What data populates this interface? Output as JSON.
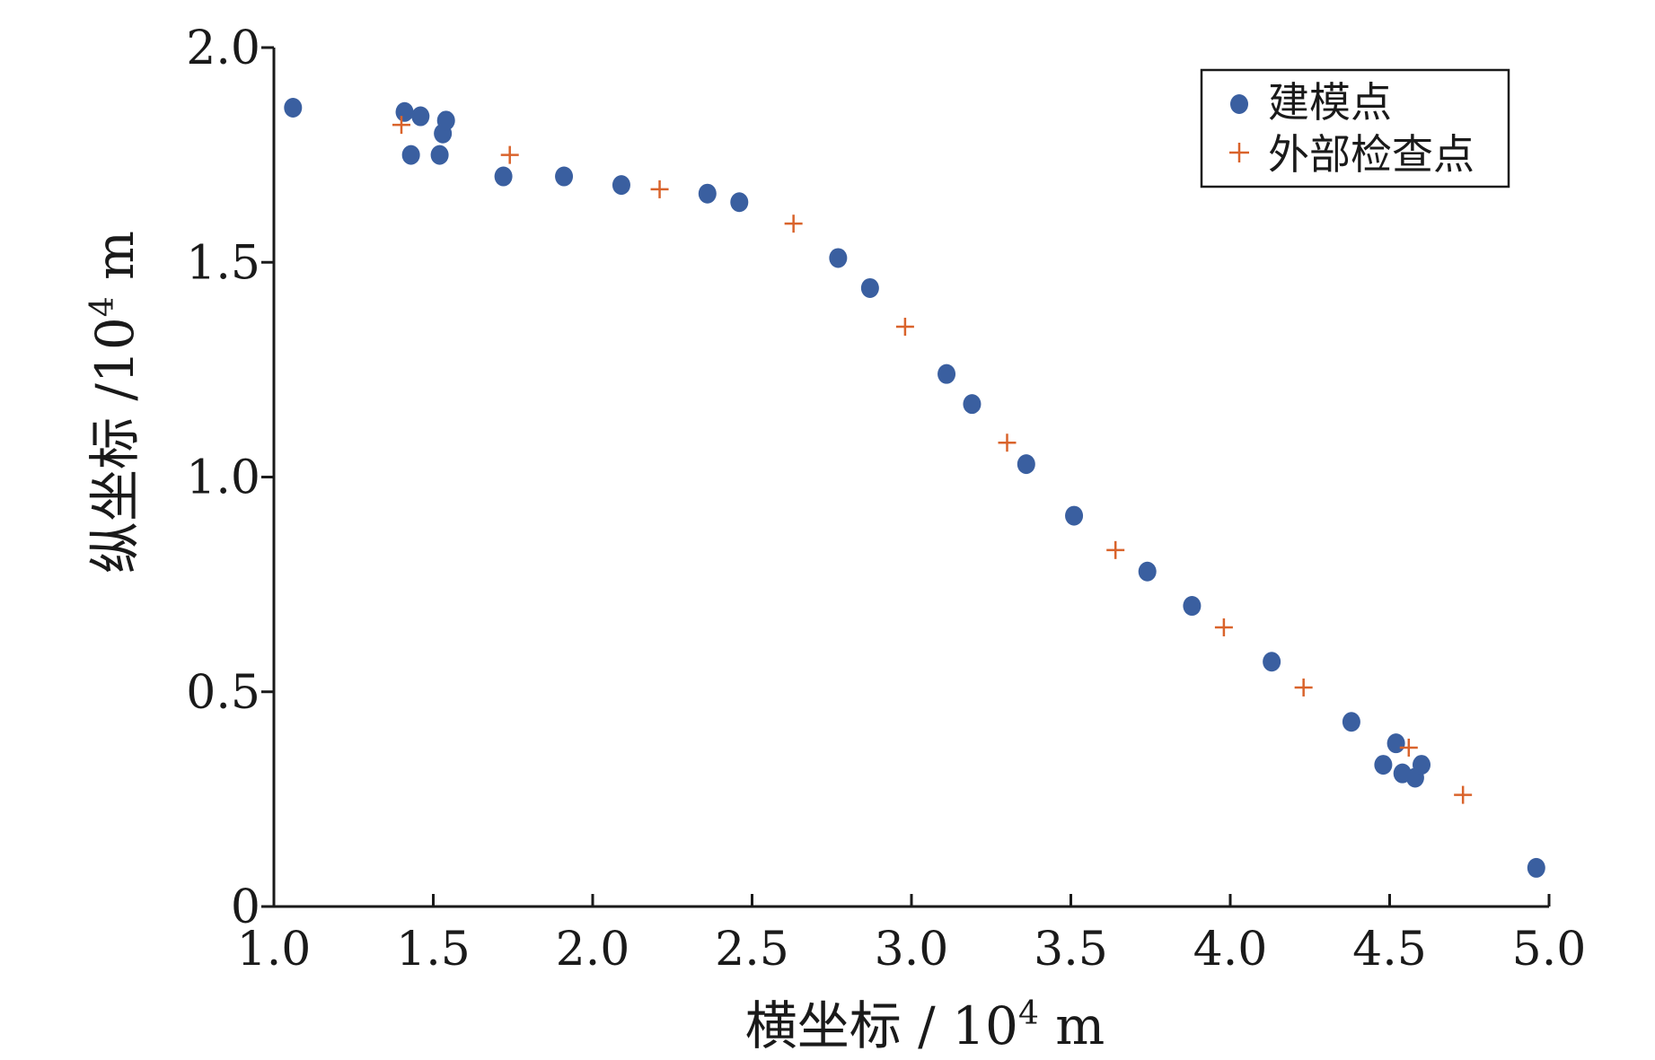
{
  "chart_data": {
    "type": "scatter",
    "xlabel": {
      "main": "横坐标 / 10",
      "sup": "4",
      "unit": " m"
    },
    "ylabel": {
      "main": "纵坐标 /10",
      "sup": "4",
      "unit": " m"
    },
    "xlim": [
      1.0,
      5.0
    ],
    "ylim": [
      0,
      2.0
    ],
    "x_ticks": [
      1.0,
      1.5,
      2.0,
      2.5,
      3.0,
      3.5,
      4.0,
      4.5,
      5.0
    ],
    "x_tick_labels": [
      "1.0",
      "1.5",
      "2.0",
      "2.5",
      "3.0",
      "3.5",
      "4.0",
      "4.5",
      "5.0"
    ],
    "y_ticks": [
      0,
      0.5,
      1.0,
      1.5,
      2.0
    ],
    "y_tick_labels": [
      "0",
      "0.5",
      "1.0",
      "1.5",
      "2.0"
    ],
    "legend_position": "top-right",
    "grid": false,
    "series": [
      {
        "name": "建模点",
        "marker": "circle",
        "color": "#3a5fa0",
        "points": [
          [
            1.06,
            1.86
          ],
          [
            1.41,
            1.85
          ],
          [
            1.46,
            1.84
          ],
          [
            1.43,
            1.75
          ],
          [
            1.52,
            1.75
          ],
          [
            1.53,
            1.8
          ],
          [
            1.54,
            1.83
          ],
          [
            1.72,
            1.7
          ],
          [
            1.91,
            1.7
          ],
          [
            2.09,
            1.68
          ],
          [
            2.36,
            1.66
          ],
          [
            2.46,
            1.64
          ],
          [
            2.77,
            1.51
          ],
          [
            2.87,
            1.44
          ],
          [
            3.11,
            1.24
          ],
          [
            3.19,
            1.17
          ],
          [
            3.36,
            1.03
          ],
          [
            3.51,
            0.91
          ],
          [
            3.74,
            0.78
          ],
          [
            3.88,
            0.7
          ],
          [
            4.13,
            0.57
          ],
          [
            4.38,
            0.43
          ],
          [
            4.48,
            0.33
          ],
          [
            4.52,
            0.38
          ],
          [
            4.54,
            0.31
          ],
          [
            4.58,
            0.3
          ],
          [
            4.6,
            0.33
          ],
          [
            4.96,
            0.09
          ]
        ]
      },
      {
        "name": "外部检查点",
        "marker": "plus",
        "color": "#d9632b",
        "points": [
          [
            1.4,
            1.82
          ],
          [
            1.74,
            1.75
          ],
          [
            2.21,
            1.67
          ],
          [
            2.63,
            1.59
          ],
          [
            2.98,
            1.35
          ],
          [
            3.3,
            1.08
          ],
          [
            3.64,
            0.83
          ],
          [
            3.98,
            0.65
          ],
          [
            4.23,
            0.51
          ],
          [
            4.56,
            0.37
          ],
          [
            4.73,
            0.26
          ]
        ]
      }
    ]
  }
}
